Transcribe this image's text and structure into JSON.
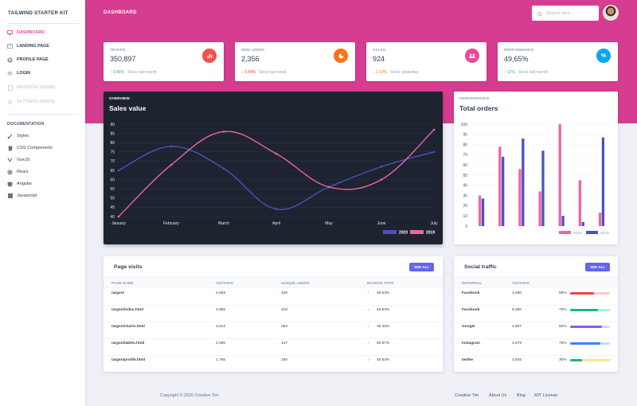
{
  "sidebar": {
    "brand": "TAILWIND STARTER KIT",
    "nav": [
      {
        "label": "DASHBOARD",
        "icon": "monitor-icon"
      },
      {
        "label": "LANDING PAGE",
        "icon": "newspaper-icon"
      },
      {
        "label": "PROFILE PAGE",
        "icon": "user-circle-icon"
      },
      {
        "label": "LOGIN",
        "icon": "fingerprint-icon"
      },
      {
        "label": "REGISTER (SOON)",
        "icon": "clipboard-icon"
      },
      {
        "label": "SETTINGS (SOON)",
        "icon": "tools-icon"
      }
    ],
    "doc_heading": "DOCUMENTATION",
    "docs": [
      {
        "label": "Styles",
        "icon": "paint-brush-icon"
      },
      {
        "label": "CSS Components",
        "icon": "css3-icon"
      },
      {
        "label": "VueJS",
        "icon": "vuejs-icon"
      },
      {
        "label": "React",
        "icon": "react-icon"
      },
      {
        "label": "Angular",
        "icon": "angular-icon"
      },
      {
        "label": "Javascript",
        "icon": "javascript-icon"
      }
    ]
  },
  "header": {
    "title": "DASHBOARD",
    "search_placeholder": "Search here..."
  },
  "stats": [
    {
      "label": "TRAFFIC",
      "value": "350,897",
      "change": "3.48%",
      "direction": "up",
      "since": "Since last month",
      "icon": "chart-bar-icon",
      "color": "#ef5350"
    },
    {
      "label": "NEW USERS",
      "value": "2,356",
      "change": "3.48%",
      "direction": "down",
      "since": "Since last week",
      "icon": "pie-chart-icon",
      "color": "#f97316"
    },
    {
      "label": "SALES",
      "value": "924",
      "change": "1.10%",
      "direction": "down",
      "since": "Since yesterday",
      "icon": "users-icon",
      "color": "#ec4899"
    },
    {
      "label": "PERFORMANCE",
      "value": "49,65%",
      "change": "12%",
      "direction": "up",
      "since": "Since last month",
      "icon": "percent-icon",
      "color": "#0ea5e9"
    }
  ],
  "line_card": {
    "overline": "OVERVIEW",
    "title": "Sales value"
  },
  "bar_card": {
    "overline": "PERFORMANCE",
    "title": "Total orders"
  },
  "chart_data": [
    {
      "type": "line",
      "categories": [
        "January",
        "February",
        "March",
        "April",
        "May",
        "June",
        "July"
      ],
      "series": [
        {
          "name": "2020",
          "values": [
            65,
            78,
            66,
            44,
            56,
            67,
            75
          ],
          "color": "#4c51bf"
        },
        {
          "name": "2019",
          "values": [
            40,
            68,
            86,
            74,
            56,
            60,
            87
          ],
          "color": "#ed64a6"
        }
      ],
      "ylim": [
        40,
        90
      ],
      "yticks": [
        40,
        45,
        50,
        55,
        60,
        65,
        70,
        75,
        80,
        85,
        90
      ],
      "grid": true,
      "legend": "bottom-right"
    },
    {
      "type": "bar",
      "categories": [
        "",
        "",
        "",
        "",
        "",
        "",
        ""
      ],
      "series": [
        {
          "name": "2018",
          "values": [
            30,
            78,
            56,
            34,
            100,
            45,
            13
          ],
          "color": "#ed64a6"
        },
        {
          "name": "2019",
          "values": [
            27,
            68,
            86,
            74,
            10,
            4,
            87
          ],
          "color": "#4c51bf"
        }
      ],
      "ylim": [
        0,
        100
      ],
      "yticks": [
        0,
        10,
        20,
        30,
        40,
        50,
        60,
        70,
        80,
        90,
        100
      ],
      "grid": true,
      "legend": "bottom"
    }
  ],
  "page_visits": {
    "title": "Page visits",
    "button": "SEE ALL",
    "headers": [
      "PAGE NAME",
      "VISITORS",
      "UNIQUE USERS",
      "BOUNCE RATE"
    ],
    "rows": [
      {
        "page": "/argon/",
        "visitors": "4,569",
        "unique": "340",
        "bounce": "46.53%",
        "direction": "up"
      },
      {
        "page": "/argon/index.html",
        "visitors": "3,985",
        "unique": "319",
        "bounce": "46.53%",
        "direction": "down"
      },
      {
        "page": "/argon/charts.html",
        "visitors": "3,513",
        "unique": "294",
        "bounce": "36.49%",
        "direction": "down"
      },
      {
        "page": "/argon/tables.html",
        "visitors": "2,050",
        "unique": "147",
        "bounce": "50.87%",
        "direction": "up"
      },
      {
        "page": "/argon/profile.html",
        "visitors": "1,795",
        "unique": "190",
        "bounce": "46.53%",
        "direction": "down"
      }
    ]
  },
  "social": {
    "title": "Social traffic",
    "button": "SEE ALL",
    "headers": [
      "REFERRAL",
      "VISITORS"
    ],
    "rows": [
      {
        "referral": "Facebook",
        "visitors": "1,480",
        "pct": "60%",
        "fill": 0.6,
        "color": "#ef4444",
        "track": "#fecaca"
      },
      {
        "referral": "Facebook",
        "visitors": "5,480",
        "pct": "70%",
        "fill": 0.7,
        "color": "#10b981",
        "track": "#a7f3d0"
      },
      {
        "referral": "Google",
        "visitors": "4,807",
        "pct": "80%",
        "fill": 0.8,
        "color": "#8b5cf6",
        "track": "#ddd6fe"
      },
      {
        "referral": "Instagram",
        "visitors": "3,678",
        "pct": "75%",
        "fill": 0.75,
        "color": "#3b82f6",
        "track": "#bfdbfe"
      },
      {
        "referral": "twitter",
        "visitors": "2,645",
        "pct": "30%",
        "fill": 0.3,
        "color": "#10b981",
        "track": "#fde68a"
      }
    ]
  },
  "footer": {
    "copyright": "Copyright © 2020 Creative Tim",
    "links": [
      "Creative Tim",
      "About Us",
      "Blog",
      "MIT License"
    ]
  }
}
